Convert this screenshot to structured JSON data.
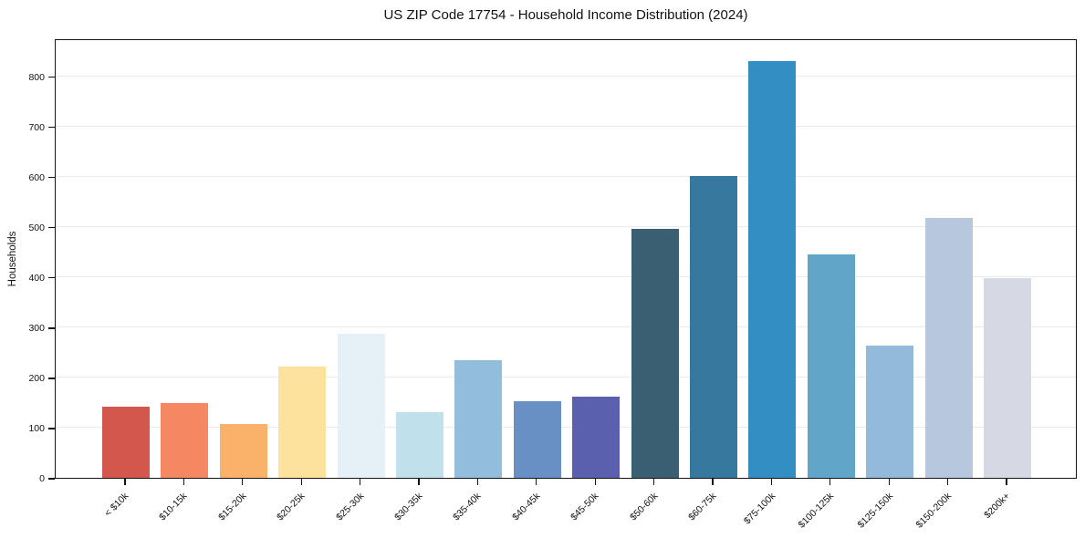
{
  "chart_data": {
    "type": "bar",
    "title": "US ZIP Code 17754 - Household Income Distribution (2024)",
    "ylabel": "Households",
    "xlabel": "",
    "categories": [
      "< $10k",
      "$10-15k",
      "$15-20k",
      "$20-25k",
      "$25-30k",
      "$30-35k",
      "$35-40k",
      "$40-45k",
      "$45-50k",
      "$50-60k",
      "$60-75k",
      "$75-100k",
      "$100-125k",
      "$125-150k",
      "$150-200k",
      "$200k+"
    ],
    "values": [
      141,
      149,
      108,
      222,
      287,
      130,
      235,
      152,
      161,
      497,
      601,
      831,
      446,
      264,
      518,
      398
    ],
    "bar_colors": [
      "#d4574e",
      "#f58762",
      "#fab26b",
      "#fde29e",
      "#e6f1f7",
      "#c0e0ec",
      "#92bddc",
      "#6890c5",
      "#5a5fae",
      "#3a5f72",
      "#37799e",
      "#338fc3",
      "#61a5c9",
      "#94badb",
      "#b7c8de",
      "#d6d8e4"
    ],
    "yticks": [
      0,
      100,
      200,
      300,
      400,
      500,
      600,
      700,
      800
    ],
    "ylim": [
      0,
      876
    ],
    "grid": true,
    "legend": "none",
    "grid_color": "#e9e9f0",
    "axis_color": "#141414"
  }
}
